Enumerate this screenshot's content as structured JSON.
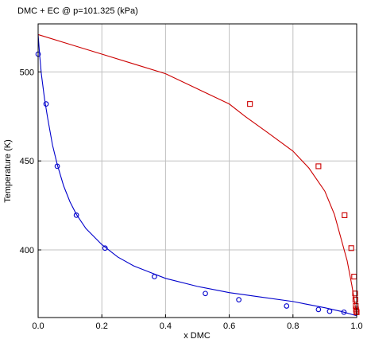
{
  "chart_data": {
    "type": "scatter",
    "title": "DMC + EC @ p=101.325 (kPa)",
    "xlabel": "x DMC",
    "ylabel": "Temperature (K)",
    "xlim": [
      0,
      1
    ],
    "ylim": [
      362,
      527
    ],
    "xticks": [
      0,
      0.2,
      0.4,
      0.6,
      0.8,
      1
    ],
    "xtick_labels": [
      "0.0",
      "0.2",
      "0.4",
      "0.6",
      "0.8",
      "1.0"
    ],
    "yticks": [
      400,
      450,
      500
    ],
    "ytick_labels": [
      "400",
      "450",
      "500"
    ],
    "grid": true,
    "series": [
      {
        "kind": "line",
        "color": "#cc0000",
        "points": [
          [
            0.0,
            521
          ],
          [
            0.1,
            515.5
          ],
          [
            0.2,
            510
          ],
          [
            0.3,
            504.5
          ],
          [
            0.4,
            499
          ],
          [
            0.5,
            490.5
          ],
          [
            0.6,
            482
          ],
          [
            0.65,
            475
          ],
          [
            0.72,
            466
          ],
          [
            0.8,
            455.5
          ],
          [
            0.85,
            446
          ],
          [
            0.9,
            433
          ],
          [
            0.93,
            420
          ],
          [
            0.95,
            407
          ],
          [
            0.97,
            394
          ],
          [
            0.985,
            380
          ],
          [
            0.995,
            369
          ],
          [
            1.0,
            363
          ]
        ]
      },
      {
        "kind": "line",
        "color": "#0000cc",
        "points": [
          [
            0.0,
            521
          ],
          [
            0.005,
            509
          ],
          [
            0.01,
            499
          ],
          [
            0.02,
            485
          ],
          [
            0.03,
            474
          ],
          [
            0.045,
            459
          ],
          [
            0.06,
            448
          ],
          [
            0.08,
            436
          ],
          [
            0.1,
            427
          ],
          [
            0.12,
            420
          ],
          [
            0.15,
            412
          ],
          [
            0.2,
            403
          ],
          [
            0.25,
            396
          ],
          [
            0.3,
            391
          ],
          [
            0.35,
            387.5
          ],
          [
            0.4,
            384
          ],
          [
            0.5,
            379.5
          ],
          [
            0.6,
            376
          ],
          [
            0.7,
            373.5
          ],
          [
            0.8,
            371
          ],
          [
            0.9,
            367.5
          ],
          [
            0.95,
            365.5
          ],
          [
            1.0,
            363
          ]
        ]
      },
      {
        "kind": "markers",
        "marker": "circle",
        "color": "#0000cc",
        "points": [
          [
            0.0,
            510
          ],
          [
            0.025,
            482
          ],
          [
            0.06,
            447
          ],
          [
            0.12,
            419.5
          ],
          [
            0.21,
            401
          ],
          [
            0.365,
            385
          ],
          [
            0.525,
            375.5
          ],
          [
            0.63,
            372
          ],
          [
            0.78,
            368.5
          ],
          [
            0.88,
            366.5
          ],
          [
            0.915,
            365.5
          ],
          [
            0.96,
            365
          ]
        ]
      },
      {
        "kind": "markers",
        "marker": "square",
        "color": "#cc0000",
        "points": [
          [
            0.665,
            482
          ],
          [
            0.88,
            447
          ],
          [
            0.962,
            419.5
          ],
          [
            0.983,
            401
          ],
          [
            0.992,
            385
          ],
          [
            0.995,
            375.5
          ],
          [
            0.996,
            372
          ],
          [
            0.997,
            368.5
          ],
          [
            0.998,
            366.5
          ],
          [
            0.999,
            365.5
          ],
          [
            1.0,
            365
          ]
        ]
      }
    ]
  }
}
